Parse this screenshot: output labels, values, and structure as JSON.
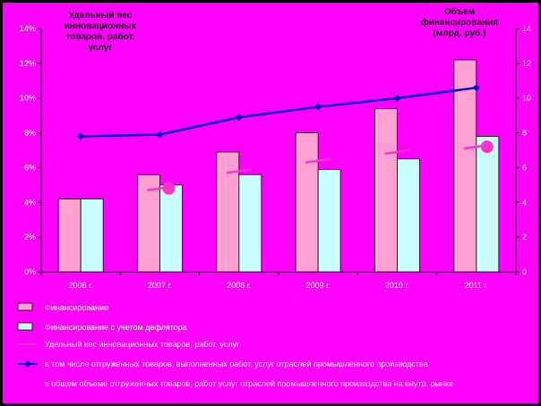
{
  "colors": {
    "background": "#ff00ff",
    "outer": "#000000",
    "bar_financing": "#ff9fd2",
    "bar_deflator": "#c8ffff",
    "line_share": "#ff33cc",
    "line_shipped": "#0000cc",
    "axis_text": "#ffffff"
  },
  "titles": {
    "left": [
      "Удельный вес",
      "инновационных",
      "товаров, работ,",
      "услуг"
    ],
    "right": [
      "Объем",
      "финансирования",
      "(млрд. руб.)"
    ]
  },
  "chart_data": {
    "type": "bar",
    "categories": [
      "2006 г.",
      "2007 г.",
      "2008 г.",
      "2009 г.",
      "2010 г.",
      "2011 г."
    ],
    "y_left": {
      "ticks": [
        "0%",
        "2%",
        "4%",
        "6%",
        "8%",
        "10%",
        "12%",
        "14%"
      ],
      "range": [
        0,
        14
      ]
    },
    "y_right": {
      "ticks": [
        "0",
        "2",
        "4",
        "6",
        "8",
        "10",
        "12",
        "14"
      ],
      "range": [
        0,
        14
      ]
    },
    "series": [
      {
        "name": "Финансирование",
        "type": "bar",
        "axis": "right",
        "values": [
          4.2,
          5.6,
          6.9,
          8.0,
          9.4,
          12.2
        ]
      },
      {
        "name": "Финансирование с учетом дефлятора",
        "type": "bar",
        "axis": "right",
        "values": [
          4.2,
          5.0,
          5.6,
          5.9,
          6.5,
          7.8
        ]
      },
      {
        "name": "Удельный вес инновационных товаров, работ, услуг",
        "type": "line",
        "axis": "left",
        "values": [
          null,
          4.8,
          5.8,
          6.4,
          6.9,
          7.2
        ]
      },
      {
        "name": "в том числе отгруженных товаров, выполненных работ, услуг отраслей промышленного производства",
        "type": "line",
        "axis": "left",
        "values": [
          7.8,
          7.9,
          8.9,
          9.5,
          10.0,
          10.6
        ]
      }
    ],
    "legend_note": "в общем объеме отгруженных товаров, работ услуг отраслей промышленного производства на внутр. рынке",
    "grid": false,
    "legend_position": "bottom"
  }
}
